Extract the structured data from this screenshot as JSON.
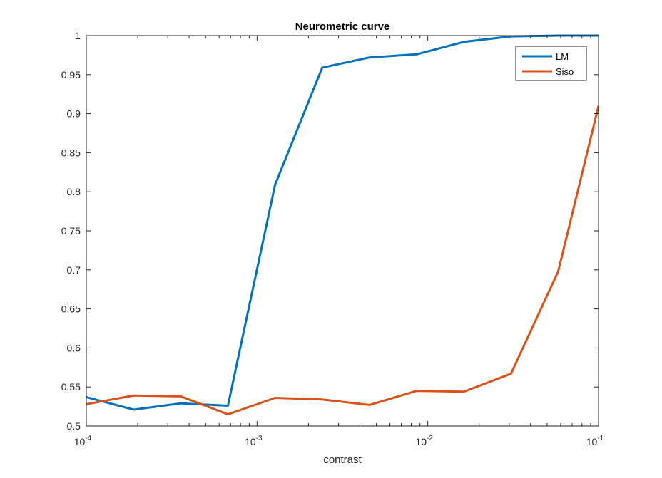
{
  "chart_data": {
    "type": "line",
    "title": "Neurometric curve",
    "xlabel": "contrast",
    "ylabel": "",
    "xscale": "log",
    "xlim": [
      0.0001,
      0.1
    ],
    "ylim": [
      0.5,
      1
    ],
    "grid": false,
    "legend_position": "top-right",
    "x_ticks": [
      {
        "value": 0.0001,
        "mantissa": "10",
        "exponent": "-4"
      },
      {
        "value": 0.001,
        "mantissa": "10",
        "exponent": "-3"
      },
      {
        "value": 0.01,
        "mantissa": "10",
        "exponent": "-2"
      },
      {
        "value": 0.1,
        "mantissa": "10",
        "exponent": "-1"
      }
    ],
    "y_ticks": [
      "0.5",
      "0.55",
      "0.6",
      "0.65",
      "0.7",
      "0.75",
      "0.8",
      "0.85",
      "0.9",
      "0.95",
      "1"
    ],
    "x": [
      0.0001,
      0.000189,
      0.000357,
      0.000675,
      0.001275,
      0.002409,
      0.004553,
      0.008603,
      0.016256,
      0.030717,
      0.058043,
      0.1
    ],
    "series": [
      {
        "name": "LM",
        "color": "#0072BD",
        "values": [
          0.537,
          0.521,
          0.529,
          0.526,
          0.809,
          0.959,
          0.972,
          0.976,
          0.992,
          0.999,
          1.0,
          1.0
        ]
      },
      {
        "name": "Siso",
        "color": "#D95319",
        "values": [
          0.528,
          0.539,
          0.538,
          0.515,
          0.536,
          0.534,
          0.527,
          0.545,
          0.544,
          0.567,
          0.698,
          0.91
        ]
      }
    ]
  }
}
